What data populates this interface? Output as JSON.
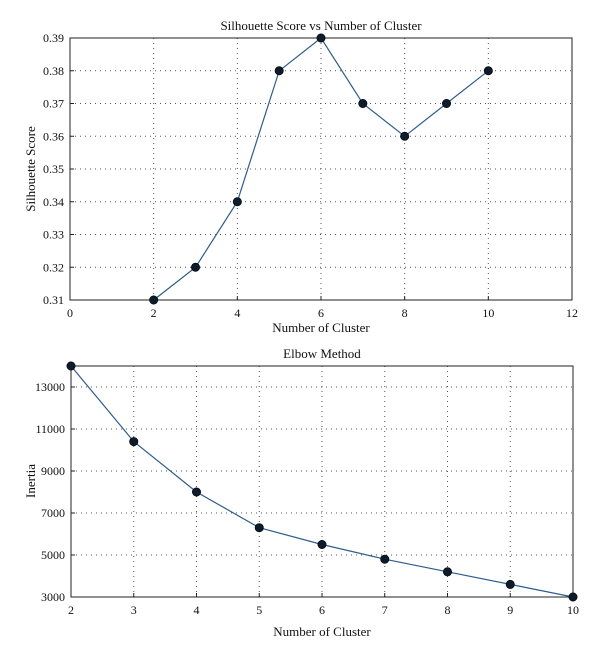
{
  "chart_data": [
    {
      "type": "line",
      "title": "Silhouette Score vs Number of Cluster",
      "xlabel": "Number of Cluster",
      "ylabel": "Silhouette Score",
      "xlim": [
        0,
        12
      ],
      "ylim": [
        0.31,
        0.39
      ],
      "xticks": [
        0,
        2,
        4,
        6,
        8,
        10,
        12
      ],
      "yticks": [
        0.31,
        0.32,
        0.33,
        0.34,
        0.35,
        0.36,
        0.37,
        0.38,
        0.39
      ],
      "grid": true,
      "x": [
        2,
        3,
        4,
        5,
        6,
        7,
        8,
        9,
        10
      ],
      "values": [
        0.31,
        0.32,
        0.34,
        0.38,
        0.39,
        0.37,
        0.36,
        0.37,
        0.38
      ],
      "line_color": "#2f5d8c",
      "marker_color": "#0d1b2a"
    },
    {
      "type": "line",
      "title": "Elbow Method",
      "xlabel": "Number of Cluster",
      "ylabel": "Inertia",
      "xlim": [
        2,
        10
      ],
      "ylim": [
        3000,
        14000
      ],
      "xticks": [
        2,
        3,
        4,
        5,
        6,
        7,
        8,
        9,
        10
      ],
      "yticks": [
        3000,
        5000,
        7000,
        9000,
        11000,
        13000
      ],
      "grid": true,
      "x": [
        2,
        3,
        4,
        5,
        6,
        7,
        8,
        9,
        10
      ],
      "values": [
        14000,
        10400,
        8000,
        6300,
        5500,
        4800,
        4200,
        3600,
        3000
      ],
      "line_color": "#2f5d8c",
      "marker_color": "#0d1b2a"
    }
  ]
}
